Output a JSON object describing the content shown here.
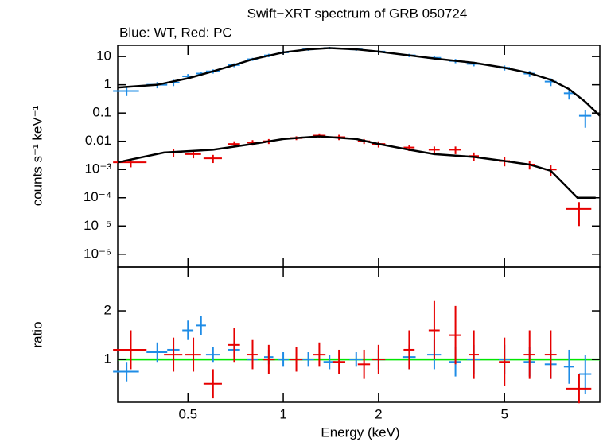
{
  "chart_data": [
    {
      "type": "scatter",
      "title": "Swift−XRT spectrum of GRB 050724",
      "subtitle": "Blue: WT, Red: PC",
      "ylabel": "counts s⁻¹ keV⁻¹",
      "xscale": "log",
      "yscale": "log",
      "xlim": [
        0.3,
        10
      ],
      "ylim": [
        3.5e-07,
        25
      ],
      "yticks": [
        10,
        1,
        0.1,
        0.01,
        {
          "value": 0.001,
          "label": "10⁻³"
        },
        {
          "value": 0.0001,
          "label": "10⁻⁴"
        },
        {
          "value": 1e-05,
          "label": "10⁻⁵"
        },
        {
          "value": 1e-06,
          "label": "10⁻⁶"
        }
      ],
      "series": [
        {
          "type": "errorbar",
          "color": "#1e8ce6",
          "x": [
            0.32,
            0.4,
            0.45,
            0.5,
            0.55,
            0.6,
            0.7,
            0.8,
            0.9,
            1.0,
            1.2,
            1.4,
            1.7,
            2.0,
            2.5,
            3.0,
            3.5,
            4.0,
            5.0,
            6.0,
            7.0,
            8.0,
            9.0
          ],
          "xerr": [
            0.03,
            0.03,
            0.02,
            0.02,
            0.02,
            0.03,
            0.03,
            0.03,
            0.03,
            0.04,
            0.05,
            0.06,
            0.08,
            0.1,
            0.12,
            0.15,
            0.15,
            0.2,
            0.2,
            0.25,
            0.3,
            0.3,
            0.4
          ],
          "values": [
            0.6,
            1.0,
            1.2,
            2.0,
            2.5,
            3,
            5,
            8,
            11,
            14,
            18,
            20,
            18,
            15,
            11,
            9,
            7,
            5.5,
            4,
            2.5,
            1.3,
            0.5,
            0.08
          ],
          "yerr": [
            0.2,
            0.25,
            0.3,
            0.4,
            0.4,
            0.5,
            0.8,
            1,
            1.5,
            2,
            2,
            2,
            2,
            2,
            1.5,
            1.5,
            1.2,
            1,
            0.8,
            0.6,
            0.4,
            0.2,
            0.05
          ]
        },
        {
          "type": "errorbar",
          "color": "#e60000",
          "x": [
            0.33,
            0.45,
            0.52,
            0.6,
            0.7,
            0.8,
            0.9,
            1.1,
            1.3,
            1.5,
            1.8,
            2.0,
            2.5,
            3.0,
            3.5,
            4.0,
            5.0,
            6.0,
            7.0,
            8.6
          ],
          "xerr": [
            0.04,
            0.03,
            0.03,
            0.04,
            0.03,
            0.03,
            0.04,
            0.05,
            0.06,
            0.07,
            0.08,
            0.1,
            0.1,
            0.12,
            0.15,
            0.15,
            0.2,
            0.25,
            0.3,
            0.8
          ],
          "values": [
            0.0018,
            0.004,
            0.0035,
            0.0025,
            0.008,
            0.009,
            0.01,
            0.013,
            0.016,
            0.014,
            0.01,
            0.008,
            0.006,
            0.005,
            0.005,
            0.003,
            0.002,
            0.0015,
            0.001,
            4e-05
          ],
          "yerr": [
            0.0006,
            0.0012,
            0.001,
            0.0008,
            0.002,
            0.002,
            0.002,
            0.002,
            0.003,
            0.003,
            0.002,
            0.002,
            0.0015,
            0.0015,
            0.0015,
            0.001,
            0.0007,
            0.0005,
            0.0004,
            3e-05
          ]
        },
        {
          "type": "line",
          "color": "#000000",
          "x": [
            0.3,
            0.4,
            0.5,
            0.6,
            0.7,
            0.8,
            1,
            1.2,
            1.4,
            1.7,
            2,
            2.5,
            3,
            4,
            5,
            6,
            7,
            8,
            9,
            10
          ],
          "values": [
            0.8,
            1.0,
            1.7,
            3,
            5,
            8,
            14,
            18,
            20,
            18,
            15,
            11,
            8.5,
            6,
            4,
            2.6,
            1.5,
            0.7,
            0.25,
            0.08
          ]
        },
        {
          "type": "line",
          "color": "#000000",
          "x": [
            0.3,
            0.42,
            0.6,
            0.8,
            1,
            1.3,
            1.7,
            2,
            2.5,
            3,
            4,
            5,
            6,
            7,
            8.5,
            9.7
          ],
          "values": [
            0.0018,
            0.004,
            0.005,
            0.008,
            0.012,
            0.015,
            0.012,
            0.008,
            0.005,
            0.0035,
            0.0028,
            0.002,
            0.0015,
            0.0009,
            0.0001,
            0.0001
          ]
        }
      ]
    },
    {
      "type": "scatter",
      "ylabel": "ratio",
      "xlabel": "Energy (keV)",
      "xscale": "log",
      "xlim": [
        0.3,
        10
      ],
      "ylim": [
        0.12,
        2.9
      ],
      "xticks": [
        0.5,
        1,
        2,
        5
      ],
      "yticks": [
        1,
        2
      ],
      "reference": 1,
      "reference_color": "#00e600",
      "series": [
        {
          "type": "errorbar",
          "color": "#1e8ce6",
          "x": [
            0.32,
            0.4,
            0.45,
            0.5,
            0.55,
            0.6,
            0.7,
            0.8,
            0.9,
            1.0,
            1.2,
            1.4,
            1.7,
            2.0,
            2.5,
            3.0,
            3.5,
            4.0,
            5.0,
            6.0,
            7.0,
            8.0,
            9.0
          ],
          "xerr": [
            0.03,
            0.03,
            0.02,
            0.02,
            0.02,
            0.03,
            0.03,
            0.03,
            0.03,
            0.04,
            0.05,
            0.06,
            0.08,
            0.1,
            0.12,
            0.15,
            0.15,
            0.2,
            0.2,
            0.25,
            0.3,
            0.3,
            0.4
          ],
          "values": [
            0.75,
            1.15,
            1.2,
            1.6,
            1.7,
            1.1,
            1.2,
            1.0,
            1.05,
            1.0,
            1.0,
            0.95,
            1.0,
            1.0,
            1.05,
            1.1,
            0.95,
            1.0,
            1.0,
            0.95,
            0.9,
            0.85,
            0.7
          ],
          "yerr": [
            0.2,
            0.2,
            0.2,
            0.2,
            0.2,
            0.15,
            0.15,
            0.15,
            0.15,
            0.15,
            0.15,
            0.15,
            0.15,
            0.2,
            0.25,
            0.3,
            0.3,
            0.3,
            0.3,
            0.3,
            0.3,
            0.35,
            0.4
          ]
        },
        {
          "type": "errorbar",
          "color": "#e60000",
          "x": [
            0.33,
            0.45,
            0.52,
            0.6,
            0.7,
            0.8,
            0.9,
            1.1,
            1.3,
            1.5,
            1.8,
            2.0,
            2.5,
            3.0,
            3.5,
            4.0,
            5.0,
            6.0,
            7.0,
            8.6
          ],
          "xerr": [
            0.04,
            0.03,
            0.03,
            0.04,
            0.03,
            0.03,
            0.04,
            0.05,
            0.06,
            0.07,
            0.08,
            0.1,
            0.1,
            0.12,
            0.15,
            0.15,
            0.2,
            0.25,
            0.3,
            0.8
          ],
          "values": [
            1.2,
            1.1,
            1.1,
            0.5,
            1.3,
            1.1,
            1.0,
            1.0,
            1.1,
            0.95,
            0.9,
            1.0,
            1.2,
            1.6,
            1.5,
            1.1,
            0.95,
            1.1,
            1.1,
            0.4
          ],
          "yerr": [
            0.4,
            0.35,
            0.35,
            0.3,
            0.35,
            0.3,
            0.3,
            0.25,
            0.25,
            0.25,
            0.3,
            0.3,
            0.4,
            0.6,
            0.6,
            0.5,
            0.5,
            0.5,
            0.5,
            0.3
          ]
        }
      ]
    }
  ]
}
